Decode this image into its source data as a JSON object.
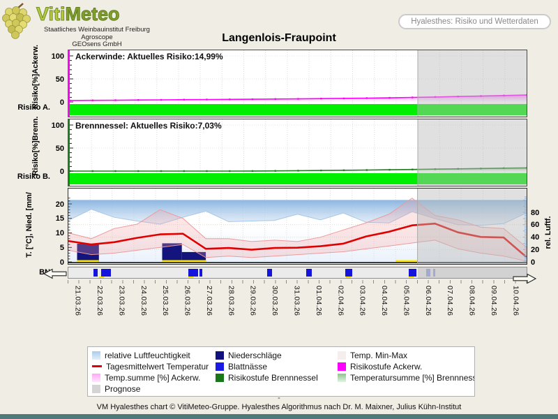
{
  "header": {
    "logo": {
      "title_part1": "Viti",
      "title_part2": "Meteo",
      "sub1": "Staatliches Weinbauinstitut Freiburg",
      "sub2": "Agroscope",
      "sub3": "GEOsens GmbH"
    },
    "nav_button": "Hyalesthes: Risiko und Wetterdaten",
    "title": "Langenlois-Fraupoint"
  },
  "axes": {
    "categories": [
      "21.03.26",
      "22.03.26",
      "23.03.26",
      "24.03.26",
      "25.03.26",
      "26.03.26",
      "27.03.26",
      "28.03.26",
      "29.03.26",
      "30.03.26",
      "31.03.26",
      "01.04.26",
      "02.04.26",
      "03.04.26",
      "04.04.26",
      "05.04.26",
      "06.04.26",
      "07.04.26",
      "08.04.26",
      "09.04.26",
      "10.04.26"
    ],
    "panel1": {
      "vertical_label": "Risiko[%]Ackerw.",
      "side_label": "Risiko A.",
      "ticks": [
        0,
        50,
        100
      ]
    },
    "panel2": {
      "vertical_label": "Risiko[%]Brenn.",
      "side_label": "Risiko B.",
      "ticks": [
        0,
        50,
        100
      ]
    },
    "panel3_left": {
      "vertical_label": "T. [°C], Nied. [mm/",
      "side_label": "BN",
      "ticks": [
        0,
        5,
        10,
        15,
        20
      ]
    },
    "panel3_right": {
      "vertical_label": "rel. Luftf.",
      "ticks": [
        0,
        20,
        40,
        60,
        80
      ]
    }
  },
  "chart_data": [
    {
      "type": "area",
      "name": "Ackerwinde Risiko",
      "annotation": "Ackerwinde: Aktuelles Risiko:14,99%",
      "current_risk_pct": "14,99",
      "ylim": [
        0,
        110
      ],
      "yticks": [
        0,
        50,
        100
      ],
      "forecast_start_index": 16,
      "series": [
        {
          "name": "Temp.summe [%] Ackerw.",
          "color": "#FF00FF",
          "values": [
            3.2,
            3.5,
            3.8,
            4.2,
            4.6,
            5.0,
            5.3,
            5.6,
            5.9,
            6.3,
            6.7,
            7.2,
            7.7,
            8.3,
            9.0,
            9.8,
            10.8,
            11.8,
            12.9,
            13.9,
            14.99
          ]
        }
      ],
      "risk_band": {
        "name": "Risikostufe Ackerw.",
        "status": "green",
        "color": "#00EF00"
      }
    },
    {
      "type": "area",
      "name": "Brennnessel Risiko",
      "annotation": "Brennnessel: Aktuelles Risiko:7,03%",
      "current_risk_pct": "7,03",
      "ylim": [
        0,
        110
      ],
      "yticks": [
        0,
        50,
        100
      ],
      "forecast_start_index": 16,
      "series": [
        {
          "name": "Temperatursumme [%] Brennnessel",
          "color": "#1E7D1E",
          "values": [
            0,
            0,
            0,
            0,
            0,
            0,
            0,
            0,
            0.2,
            0.5,
            0.9,
            1.3,
            1.8,
            2.3,
            2.9,
            3.5,
            4.2,
            4.9,
            5.6,
            6.3,
            7.03
          ]
        }
      ],
      "risk_band": {
        "name": "Risikostufe Brennnessel",
        "status": "green",
        "color": "#00EF00"
      }
    },
    {
      "type": "line",
      "name": "Wetterdaten",
      "ylim_left": [
        0,
        22.5
      ],
      "yticks_left": [
        0,
        5,
        10,
        15,
        20
      ],
      "ylim_right": [
        0,
        105
      ],
      "yticks_right": [
        0,
        20,
        40,
        60,
        80
      ],
      "forecast_start_index": 16,
      "series": [
        {
          "name": "relative Luftfeuchtigkeit",
          "type": "area_from_top",
          "axis": "right",
          "color": "#85B2DF",
          "values": [
            67,
            85,
            72,
            66,
            61,
            72,
            82,
            65,
            66,
            67,
            77,
            68,
            79,
            64,
            63,
            81,
            70,
            60,
            59,
            62,
            79
          ]
        },
        {
          "name": "Temp. Min-Max",
          "type": "band",
          "color": "#F4A0A0",
          "max": [
            10.0,
            8.0,
            11.5,
            13.0,
            18.0,
            15.0,
            8.0,
            8.0,
            7.0,
            7.5,
            7.0,
            8.5,
            11.0,
            13.5,
            16.5,
            22.0,
            16.0,
            14.5,
            12.0,
            11.5,
            5.0
          ],
          "min": [
            4.0,
            2.5,
            3.0,
            4.0,
            5.0,
            6.0,
            1.5,
            2.0,
            1.5,
            2.0,
            2.5,
            3.0,
            3.5,
            4.5,
            5.5,
            6.5,
            7.5,
            4.5,
            3.0,
            2.0,
            0.2
          ]
        },
        {
          "name": "Niederschläge",
          "type": "bars",
          "color": "#14147E",
          "bars": [
            {
              "from": 0.4,
              "to": 1.4,
              "value": 6.3
            },
            {
              "from": 4.3,
              "to": 5.2,
              "value": 6.4
            },
            {
              "from": 5.2,
              "to": 6.3,
              "value": 3.4
            }
          ]
        },
        {
          "name": "Tagesmittelwert Temperatur",
          "type": "line",
          "color": "#E00000",
          "values": [
            7.2,
            6.0,
            6.8,
            8.3,
            9.5,
            9.7,
            4.5,
            4.8,
            4.2,
            4.8,
            4.9,
            5.4,
            6.3,
            8.8,
            10.4,
            12.6,
            13.2,
            10.2,
            8.6,
            8.4,
            1.6
          ]
        },
        {
          "name": "gelbe Basislinien-Segmente",
          "type": "segments",
          "color": "#FFE800",
          "segments": [
            [
              0.4,
              1.4
            ],
            [
              4.3,
              6.3
            ],
            [
              15.0,
              16.0
            ]
          ]
        }
      ],
      "bn_strip": {
        "name": "Blattnässe",
        "color": "#1414DC",
        "marks": [
          {
            "pos": 1.15,
            "w": 0.2
          },
          {
            "pos": 1.5,
            "w": 0.45
          },
          {
            "pos": 5.5,
            "w": 0.45
          },
          {
            "pos": 6.0,
            "w": 0.15
          },
          {
            "pos": 9.1,
            "w": 0.25
          },
          {
            "pos": 10.9,
            "w": 0.25
          },
          {
            "pos": 12.7,
            "w": 0.3
          },
          {
            "pos": 15.6,
            "w": 0.35
          },
          {
            "pos": 16.4,
            "w": 0.2,
            "forecast": true
          },
          {
            "pos": 16.7,
            "w": 0.12,
            "forecast": true
          }
        ],
        "yellow_dashes": [
          1.5,
          5.6,
          12.8,
          15.7
        ]
      }
    }
  ],
  "legend": {
    "columns": [
      [
        {
          "label": "relative Luftfeuchtigkeit",
          "swatch": "grad",
          "c1": "#A9CCEC",
          "c2": "#E3EEF9"
        },
        {
          "label": "Tagesmittelwert Temperatur",
          "swatch": "line",
          "c1": "#E00000"
        },
        {
          "label": "Temp.summe [%] Ackerw.",
          "swatch": "grad",
          "c1": "#FFA6F7",
          "c2": "#FFE6FD"
        },
        {
          "label": "Prognose",
          "swatch": "square",
          "c1": "#D4D4D4"
        }
      ],
      [
        {
          "label": "Niederschläge",
          "swatch": "square",
          "c1": "#10107E"
        },
        {
          "label": "Blattnässe",
          "swatch": "square",
          "c1": "#1A1AE6"
        },
        {
          "label": "Risikostufe Brennnessel",
          "swatch": "square",
          "c1": "#187818"
        }
      ],
      [
        {
          "label": "Temp. Min-Max",
          "swatch": "square",
          "c1": "#F6EDED"
        },
        {
          "label": "Risikostufe Ackerw.",
          "swatch": "square",
          "c1": "#FF00FF"
        },
        {
          "label": "Temperatursumme [%] Brennnessel",
          "swatch": "grad",
          "c1": "#8FC48F",
          "c2": "#E2F2E2"
        }
      ]
    ]
  },
  "footer": {
    "dash": "-",
    "text": "VM Hyalesthes chart © VitiMeteo-Gruppe. Hyalesthes Algorithmus nach Dr. M. Maixner, Julius Kühn-Institut"
  },
  "colors": {
    "page_bg": "#F0EDE4",
    "forecast_overlay": "rgba(186,186,186,0.45)",
    "risk_band": "#00EF00",
    "footer_bar": "#4E7A7A"
  }
}
